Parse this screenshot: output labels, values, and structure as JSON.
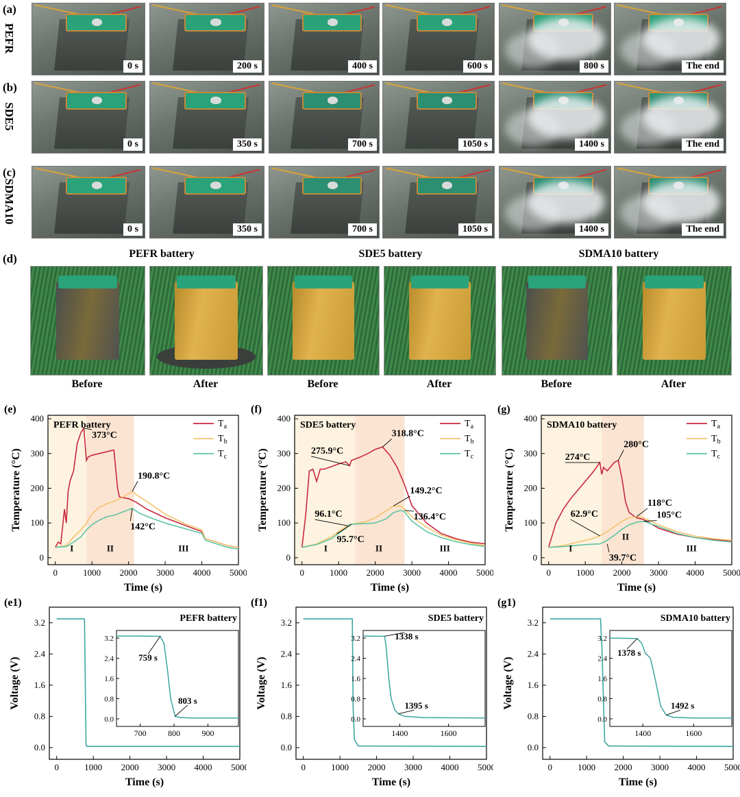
{
  "rows": [
    {
      "letter": "(a)",
      "name": "PEFR",
      "times": [
        "0 s",
        "200 s",
        "400 s",
        "600 s",
        "800 s",
        "The end"
      ]
    },
    {
      "letter": "(b)",
      "name": "SDE5",
      "times": [
        "0 s",
        "350 s",
        "700 s",
        "1050 s",
        "1400 s",
        "The end"
      ]
    },
    {
      "letter": "(c)",
      "name": "SDMA10",
      "times": [
        "0 s",
        "350 s",
        "700 s",
        "1050 s",
        "1400 s",
        "The end"
      ]
    }
  ],
  "panel_d": {
    "letter": "(d)",
    "headers": [
      "PEFR battery",
      "SDE5 battery",
      "SDMA10 battery"
    ],
    "captions": [
      "Before",
      "After",
      "Before",
      "After",
      "Before",
      "After"
    ]
  },
  "colors": {
    "Ta": "#c8283c",
    "Tb": "#f5c36e",
    "Tc": "#5fc3a4",
    "voltage": "#3aa6a0",
    "zone1": "#fdf3e0",
    "zone2": "#fbe4d2"
  },
  "chart_data": [
    {
      "id": "e",
      "letter": "(e)",
      "type": "line",
      "title": "PEFR battery",
      "xlabel": "Time (s)",
      "ylabel": "Temperature (°C)",
      "xlim": [
        -200,
        5000
      ],
      "ylim": [
        -20,
        410
      ],
      "xticks": [
        0,
        1000,
        2000,
        3000,
        4000,
        5000
      ],
      "yticks": [
        0,
        100,
        200,
        300,
        400
      ],
      "zones": [
        {
          "from": -200,
          "to": 850
        },
        {
          "from": 850,
          "to": 2150
        }
      ],
      "zone_labels": [
        {
          "text": "I",
          "x": 450,
          "y": 18
        },
        {
          "text": "II",
          "x": 1500,
          "y": 18
        },
        {
          "text": "III",
          "x": 3500,
          "y": 18
        }
      ],
      "legend": [
        "T",
        "T",
        "T"
      ],
      "legend_sub": [
        "a",
        "b",
        "c"
      ],
      "series": [
        {
          "name": "Ta",
          "x": [
            0,
            80,
            150,
            250,
            300,
            350,
            400,
            500,
            600,
            700,
            780,
            850,
            900,
            1000,
            1200,
            1400,
            1600,
            1700,
            1750,
            2000,
            2200,
            2500,
            3000,
            3500,
            4000,
            4100,
            4400,
            4700,
            5000
          ],
          "y": [
            30,
            45,
            40,
            140,
            100,
            190,
            220,
            250,
            330,
            360,
            373,
            280,
            290,
            295,
            300,
            305,
            310,
            200,
            175,
            170,
            160,
            140,
            115,
            95,
            75,
            55,
            45,
            35,
            30
          ]
        },
        {
          "name": "Tb",
          "x": [
            0,
            300,
            500,
            700,
            850,
            1000,
            1200,
            1400,
            1600,
            1800,
            2000,
            2100,
            2300,
            2600,
            3000,
            3500,
            4000,
            4100,
            4400,
            4700,
            5000
          ],
          "y": [
            30,
            35,
            60,
            80,
            100,
            125,
            145,
            155,
            162,
            172,
            185,
            190.8,
            175,
            155,
            125,
            100,
            80,
            55,
            45,
            35,
            30
          ]
        },
        {
          "name": "Tc",
          "x": [
            0,
            300,
            500,
            700,
            850,
            1000,
            1200,
            1400,
            1600,
            1800,
            2000,
            2100,
            2300,
            2600,
            3000,
            3500,
            4000,
            4100,
            4400,
            4700,
            5000
          ],
          "y": [
            30,
            32,
            45,
            60,
            80,
            95,
            108,
            118,
            122,
            130,
            138,
            142,
            128,
            115,
            100,
            85,
            70,
            50,
            40,
            30,
            25
          ]
        }
      ],
      "annotations": [
        {
          "text": "373°C",
          "x": 780,
          "y": 373,
          "tx": 1000,
          "ty": 345
        },
        {
          "text": "190.8°C",
          "x": 2100,
          "y": 190.8,
          "tx": 2250,
          "ty": 228
        },
        {
          "text": "142°C",
          "x": 2100,
          "y": 142,
          "tx": 2050,
          "ty": 82
        }
      ]
    },
    {
      "id": "f",
      "letter": "(f)",
      "type": "line",
      "title": "SDE5 battery",
      "xlabel": "Time (s)",
      "ylabel": "Temperature (°C)",
      "xlim": [
        -200,
        5000
      ],
      "ylim": [
        -20,
        410
      ],
      "xticks": [
        0,
        1000,
        2000,
        3000,
        4000,
        5000
      ],
      "yticks": [
        0,
        100,
        200,
        300,
        400
      ],
      "zones": [
        {
          "from": -200,
          "to": 1450
        },
        {
          "from": 1450,
          "to": 2800
        }
      ],
      "zone_labels": [
        {
          "text": "I",
          "x": 650,
          "y": 18
        },
        {
          "text": "II",
          "x": 2100,
          "y": 18
        },
        {
          "text": "III",
          "x": 3900,
          "y": 18
        }
      ],
      "legend": [
        "T",
        "T",
        "T"
      ],
      "legend_sub": [
        "a",
        "b",
        "c"
      ],
      "series": [
        {
          "name": "Ta",
          "x": [
            0,
            100,
            200,
            300,
            400,
            500,
            600,
            800,
            1000,
            1200,
            1300,
            1350,
            1400,
            1600,
            1800,
            2000,
            2200,
            2400,
            2600,
            2800,
            3000,
            3400,
            3800,
            4200,
            4600,
            5000
          ],
          "y": [
            30,
            120,
            250,
            255,
            220,
            255,
            255,
            262,
            270,
            275.9,
            265,
            280,
            282,
            290,
            300,
            312,
            318.8,
            295,
            260,
            210,
            150,
            100,
            70,
            55,
            45,
            40
          ]
        },
        {
          "name": "Tb",
          "x": [
            0,
            400,
            800,
            1000,
            1200,
            1300,
            1450,
            1700,
            2000,
            2300,
            2500,
            2700,
            2800,
            3000,
            3400,
            3800,
            4200,
            4600,
            5000
          ],
          "y": [
            30,
            40,
            60,
            75,
            90,
            96.1,
            98,
            102,
            115,
            135,
            149.2,
            148,
            140,
            118,
            88,
            65,
            52,
            42,
            35
          ]
        },
        {
          "name": "Tc",
          "x": [
            0,
            400,
            800,
            1000,
            1200,
            1300,
            1450,
            1700,
            2000,
            2300,
            2500,
            2700,
            2800,
            3000,
            3400,
            3800,
            4200,
            4600,
            5000
          ],
          "y": [
            30,
            38,
            55,
            70,
            85,
            95.7,
            97,
            98,
            100,
            112,
            130,
            136.4,
            132,
            105,
            75,
            58,
            46,
            38,
            32
          ]
        }
      ],
      "annotations": [
        {
          "text": "275.9°C",
          "x": 1300,
          "y": 265,
          "tx": 250,
          "ty": 300
        },
        {
          "text": "318.8°C",
          "x": 2200,
          "y": 318.8,
          "tx": 2450,
          "ty": 350
        },
        {
          "text": "149.2°C",
          "x": 2500,
          "y": 149.2,
          "tx": 2950,
          "ty": 185
        },
        {
          "text": "136.4°C",
          "x": 2800,
          "y": 136.4,
          "tx": 3050,
          "ty": 110
        },
        {
          "text": "96.1°C",
          "x": 1250,
          "y": 92,
          "tx": 350,
          "ty": 118
        },
        {
          "text": "95.7°C",
          "x": 1350,
          "y": 95.7,
          "tx": 950,
          "ty": 45
        }
      ]
    },
    {
      "id": "g",
      "letter": "(g)",
      "type": "line",
      "title": "SDMA10 battery",
      "xlabel": "Time (s)",
      "ylabel": "Temperature (°C)",
      "xlim": [
        -200,
        5000
      ],
      "ylim": [
        -20,
        410
      ],
      "xticks": [
        0,
        1000,
        2000,
        3000,
        4000,
        5000
      ],
      "yticks": [
        0,
        100,
        200,
        300,
        400
      ],
      "zones": [
        {
          "from": -200,
          "to": 1450
        },
        {
          "from": 1450,
          "to": 2600
        }
      ],
      "zone_labels": [
        {
          "text": "I",
          "x": 600,
          "y": 18
        },
        {
          "text": "II",
          "x": 2100,
          "y": 52
        },
        {
          "text": "III",
          "x": 3900,
          "y": 18
        }
      ],
      "legend": [
        "T",
        "T",
        "T"
      ],
      "legend_sub": [
        "a",
        "b",
        "c"
      ],
      "series": [
        {
          "name": "Ta",
          "x": [
            0,
            200,
            400,
            600,
            800,
            1000,
            1200,
            1400,
            1450,
            1500,
            1600,
            1800,
            1900,
            2000,
            2100,
            2200,
            2400,
            2600,
            3000,
            3500,
            4000,
            4500,
            5000
          ],
          "y": [
            30,
            100,
            140,
            170,
            195,
            220,
            245,
            274,
            240,
            260,
            250,
            275,
            280,
            230,
            160,
            130,
            115,
            110,
            85,
            68,
            58,
            52,
            48
          ]
        },
        {
          "name": "Tb",
          "x": [
            0,
            400,
            800,
            1200,
            1400,
            1600,
            1800,
            2000,
            2200,
            2400,
            2600,
            3000,
            3500,
            4000,
            4500,
            5000
          ],
          "y": [
            30,
            35,
            45,
            55,
            62.9,
            75,
            90,
            105,
            115,
            118,
            115,
            95,
            75,
            62,
            55,
            50
          ]
        },
        {
          "name": "Tc",
          "x": [
            0,
            400,
            800,
            1200,
            1400,
            1600,
            1800,
            2000,
            2200,
            2400,
            2600,
            3000,
            3500,
            4000,
            4500,
            5000
          ],
          "y": [
            30,
            32,
            36,
            39,
            39.7,
            50,
            65,
            82,
            95,
            102,
            105,
            90,
            70,
            58,
            50,
            45
          ]
        }
      ],
      "annotations": [
        {
          "text": "274°C",
          "x": 1400,
          "y": 274,
          "tx": 450,
          "ty": 282
        },
        {
          "text": "280°C",
          "x": 1900,
          "y": 280,
          "tx": 2050,
          "ty": 318
        },
        {
          "text": "62.9°C",
          "x": 1400,
          "y": 62.9,
          "tx": 600,
          "ty": 118
        },
        {
          "text": "39.7°C",
          "x": 1600,
          "y": 39.7,
          "tx": 1650,
          "ty": -8
        },
        {
          "text": "118°C",
          "x": 2400,
          "y": 118,
          "tx": 2700,
          "ty": 150
        },
        {
          "text": "105°C",
          "x": 2600,
          "y": 105,
          "tx": 2950,
          "ty": 115
        }
      ]
    },
    {
      "id": "e1",
      "letter": "(e1)",
      "type": "line",
      "title": "PEFR battery",
      "xlabel": "Time (s)",
      "ylabel": "Voltage (V)",
      "xlim": [
        -200,
        5000
      ],
      "ylim": [
        -0.3,
        3.6
      ],
      "xticks": [
        0,
        1000,
        2000,
        3000,
        4000,
        5000
      ],
      "yticks": [
        0.0,
        0.8,
        1.6,
        2.4,
        3.2
      ],
      "yticklabels": [
        "0.0",
        "0.8",
        "1.6",
        "2.4",
        "3.2"
      ],
      "series": [
        {
          "name": "V",
          "x": [
            0,
            759,
            790,
            803,
            830,
            5000
          ],
          "y": [
            3.3,
            3.3,
            1.0,
            0.06,
            0.03,
            0.03
          ]
        }
      ],
      "inset": {
        "xlim": [
          630,
          990
        ],
        "ylim": [
          -0.3,
          3.5
        ],
        "xticks": [
          700,
          800,
          900
        ],
        "yticks": [
          0.0,
          0.8,
          1.6,
          2.4,
          3.2
        ],
        "yticklabels": [
          "0.0",
          "0.8",
          "1.6",
          "2.4",
          "3.2"
        ],
        "x": [
          630,
          700,
          759,
          770,
          780,
          790,
          800,
          803,
          820,
          850,
          990
        ],
        "y": [
          3.28,
          3.28,
          3.27,
          3.0,
          2.0,
          0.8,
          0.25,
          0.1,
          0.05,
          0.03,
          0.03
        ],
        "annotations": [
          {
            "text": "759 s",
            "x": 759,
            "y": 3.27,
            "tx": 695,
            "ty": 2.3
          },
          {
            "text": "803 s",
            "x": 803,
            "y": 0.1,
            "tx": 812,
            "ty": 0.6
          }
        ]
      }
    },
    {
      "id": "f1",
      "letter": "(f1)",
      "type": "line",
      "title": "SDE5 battery",
      "xlabel": "Time (s)",
      "ylabel": "Voltage (V)",
      "xlim": [
        -200,
        5000
      ],
      "ylim": [
        -0.3,
        3.6
      ],
      "xticks": [
        0,
        1000,
        2000,
        3000,
        4000,
        5000
      ],
      "yticks": [
        0.0,
        0.8,
        1.6,
        2.4,
        3.2
      ],
      "yticklabels": [
        "0.0",
        "0.8",
        "1.6",
        "2.4",
        "3.2"
      ],
      "series": [
        {
          "name": "V",
          "x": [
            0,
            1338,
            1360,
            1395,
            1500,
            5000
          ],
          "y": [
            3.3,
            3.3,
            1.0,
            0.2,
            0.04,
            0.03
          ]
        }
      ],
      "inset": {
        "xlim": [
          1250,
          1750
        ],
        "ylim": [
          -0.3,
          3.5
        ],
        "xticks": [
          1400,
          1600
        ],
        "yticks": [
          0.0,
          0.8,
          1.6,
          2.4,
          3.2
        ],
        "yticklabels": [
          "0.0",
          "0.8",
          "1.6",
          "2.4",
          "3.2"
        ],
        "x": [
          1250,
          1338,
          1345,
          1355,
          1365,
          1380,
          1395,
          1420,
          1500,
          1750
        ],
        "y": [
          3.28,
          3.27,
          2.8,
          1.6,
          0.8,
          0.35,
          0.2,
          0.1,
          0.05,
          0.03
        ],
        "annotations": [
          {
            "text": "1338 s",
            "x": 1338,
            "y": 3.27,
            "tx": 1380,
            "ty": 3.15
          },
          {
            "text": "1395 s",
            "x": 1395,
            "y": 0.2,
            "tx": 1420,
            "ty": 0.4
          }
        ]
      }
    },
    {
      "id": "g1",
      "letter": "(g1)",
      "type": "line",
      "title": "SDMA10 battery",
      "xlabel": "Time (s)",
      "ylabel": "Voltage (V)",
      "xlim": [
        -200,
        5000
      ],
      "ylim": [
        -0.3,
        3.6
      ],
      "xticks": [
        0,
        1000,
        2000,
        3000,
        4000,
        5000
      ],
      "yticks": [
        0.0,
        0.8,
        1.6,
        2.4,
        3.2
      ],
      "yticklabels": [
        "0.0",
        "0.8",
        "1.6",
        "2.4",
        "3.2"
      ],
      "series": [
        {
          "name": "V",
          "x": [
            0,
            1378,
            1420,
            1492,
            1600,
            5000
          ],
          "y": [
            3.3,
            3.3,
            2.5,
            0.15,
            0.04,
            0.03
          ]
        }
      ],
      "inset": {
        "xlim": [
          1270,
          1750
        ],
        "ylim": [
          -0.3,
          3.5
        ],
        "xticks": [
          1400,
          1600
        ],
        "yticks": [
          0.0,
          0.8,
          1.6,
          2.4,
          3.2
        ],
        "yticklabels": [
          "0.0",
          "0.8",
          "1.6",
          "2.4",
          "3.2"
        ],
        "x": [
          1270,
          1378,
          1395,
          1410,
          1420,
          1430,
          1450,
          1470,
          1492,
          1520,
          1600,
          1750
        ],
        "y": [
          3.2,
          3.18,
          3.0,
          2.6,
          2.5,
          2.4,
          1.5,
          0.5,
          0.15,
          0.06,
          0.03,
          0.03
        ],
        "annotations": [
          {
            "text": "1378 s",
            "x": 1378,
            "y": 3.18,
            "tx": 1300,
            "ty": 2.5
          },
          {
            "text": "1492 s",
            "x": 1492,
            "y": 0.15,
            "tx": 1510,
            "ty": 0.4
          }
        ]
      }
    }
  ]
}
